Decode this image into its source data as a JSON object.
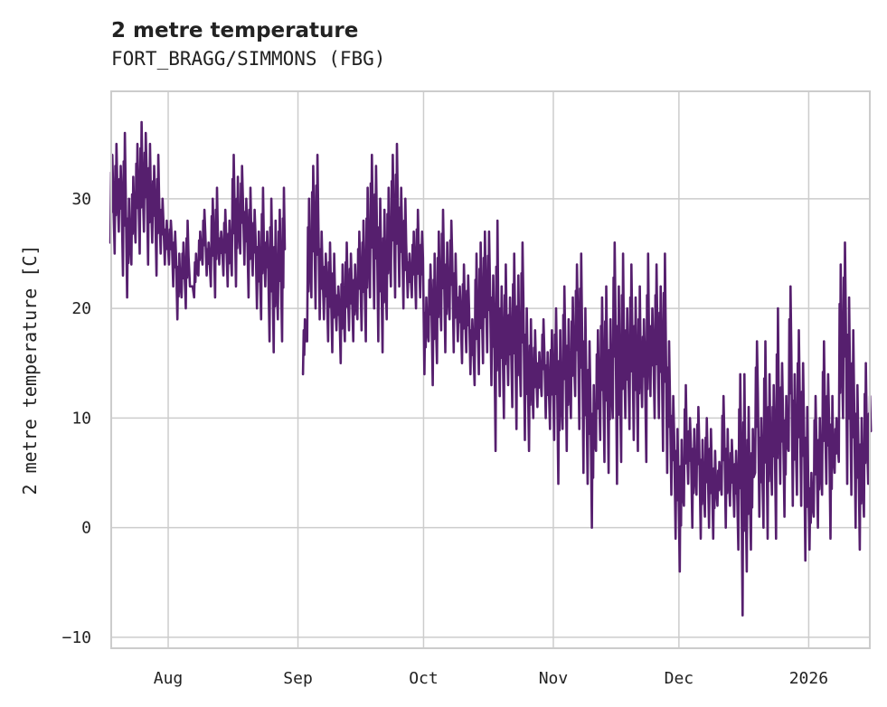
{
  "chart_data": {
    "type": "line",
    "title": "2 metre temperature",
    "subtitle": "FORT_BRAGG/SIMMONS (FBG)",
    "xlabel": "",
    "ylabel": "2 metre temperature [C]",
    "ylim": [
      -11,
      39.8
    ],
    "xlim_days": [
      0,
      182
    ],
    "start_date": "2025-07-18",
    "grid": true,
    "color": "#561f6e",
    "yticks": [
      {
        "value": 30,
        "label": "30"
      },
      {
        "value": 20,
        "label": "20"
      },
      {
        "value": 10,
        "label": "10"
      },
      {
        "value": 0,
        "label": "0"
      },
      {
        "value": -10,
        "label": "−10"
      }
    ],
    "xticks": [
      {
        "day": 14,
        "label": "Aug"
      },
      {
        "day": 45,
        "label": "Sep"
      },
      {
        "day": 75,
        "label": "Oct"
      },
      {
        "day": 106,
        "label": "Nov"
      },
      {
        "day": 136,
        "label": "Dec"
      },
      {
        "day": 167,
        "label": "2026"
      }
    ],
    "series": [
      {
        "name": "2 metre temperature",
        "daily_high": [
          34,
          35,
          33,
          36,
          30,
          32,
          35,
          37,
          36,
          35,
          33,
          34,
          30,
          28,
          28,
          27,
          25,
          26,
          28,
          22,
          25,
          27,
          29,
          26,
          30,
          31,
          27,
          29,
          28,
          34,
          32,
          33,
          30,
          31,
          29,
          27,
          31,
          27,
          30,
          28,
          29,
          31,
          null,
          null,
          null,
          null,
          19,
          30,
          33,
          34,
          27,
          25,
          26,
          25,
          22,
          24,
          26,
          25,
          24,
          27,
          28,
          31,
          34,
          33,
          30,
          29,
          31,
          34,
          35,
          31,
          30,
          25,
          27,
          29,
          27,
          21,
          24,
          25,
          27,
          29,
          26,
          28,
          25,
          22,
          24,
          23,
          19,
          25,
          26,
          27,
          27,
          23,
          28,
          22,
          24,
          21,
          25,
          23,
          26,
          20,
          19,
          18,
          16,
          19,
          16,
          18,
          20,
          18,
          22,
          19,
          21,
          24,
          25,
          20,
          17,
          13,
          18,
          21,
          22,
          19,
          26,
          22,
          25,
          20,
          24,
          21,
          22,
          19,
          25,
          20,
          24,
          22,
          25,
          17,
          12,
          9,
          8,
          13,
          10,
          9,
          11,
          8,
          10,
          9,
          7,
          6,
          12,
          9,
          8,
          7,
          14,
          14,
          11,
          9,
          17,
          10,
          17,
          14,
          13,
          20,
          15,
          12,
          22,
          14,
          18,
          15,
          11,
          5,
          12,
          10,
          17,
          14,
          12,
          10,
          24,
          26,
          21,
          18,
          13,
          10,
          15,
          12
        ],
        "daily_low": [
          26,
          25,
          27,
          23,
          21,
          24,
          26,
          25,
          27,
          24,
          26,
          23,
          25,
          24,
          24,
          22,
          19,
          21,
          20,
          22,
          21,
          23,
          24,
          23,
          22,
          21,
          24,
          23,
          22,
          23,
          22,
          25,
          24,
          21,
          23,
          20,
          19,
          22,
          17,
          16,
          19,
          17,
          null,
          null,
          null,
          null,
          14,
          17,
          21,
          20,
          19,
          19,
          17,
          16,
          18,
          15,
          17,
          18,
          17,
          19,
          18,
          17,
          21,
          20,
          17,
          16,
          19,
          22,
          21,
          22,
          20,
          21,
          21,
          20,
          21,
          14,
          17,
          13,
          15,
          18,
          16,
          19,
          16,
          17,
          15,
          16,
          14,
          13,
          14,
          15,
          16,
          13,
          7,
          12,
          10,
          13,
          11,
          9,
          12,
          8,
          7,
          10,
          11,
          12,
          10,
          9,
          8,
          4,
          9,
          7,
          10,
          12,
          9,
          5,
          4,
          0,
          7,
          8,
          6,
          5,
          10,
          4,
          6,
          10,
          9,
          8,
          7,
          11,
          6,
          12,
          10,
          10,
          7,
          5,
          3,
          -1,
          -4,
          2,
          4,
          0,
          3,
          -1,
          1,
          0,
          -1,
          2,
          3,
          0,
          2,
          1,
          -2,
          -8,
          -4,
          -2,
          5,
          1,
          0,
          -1,
          3,
          -1,
          4,
          1,
          7,
          2,
          3,
          2,
          -3,
          -2,
          1,
          0,
          3,
          4,
          -1,
          5,
          6,
          10,
          4,
          3,
          0,
          -2,
          1,
          4
        ]
      }
    ]
  }
}
